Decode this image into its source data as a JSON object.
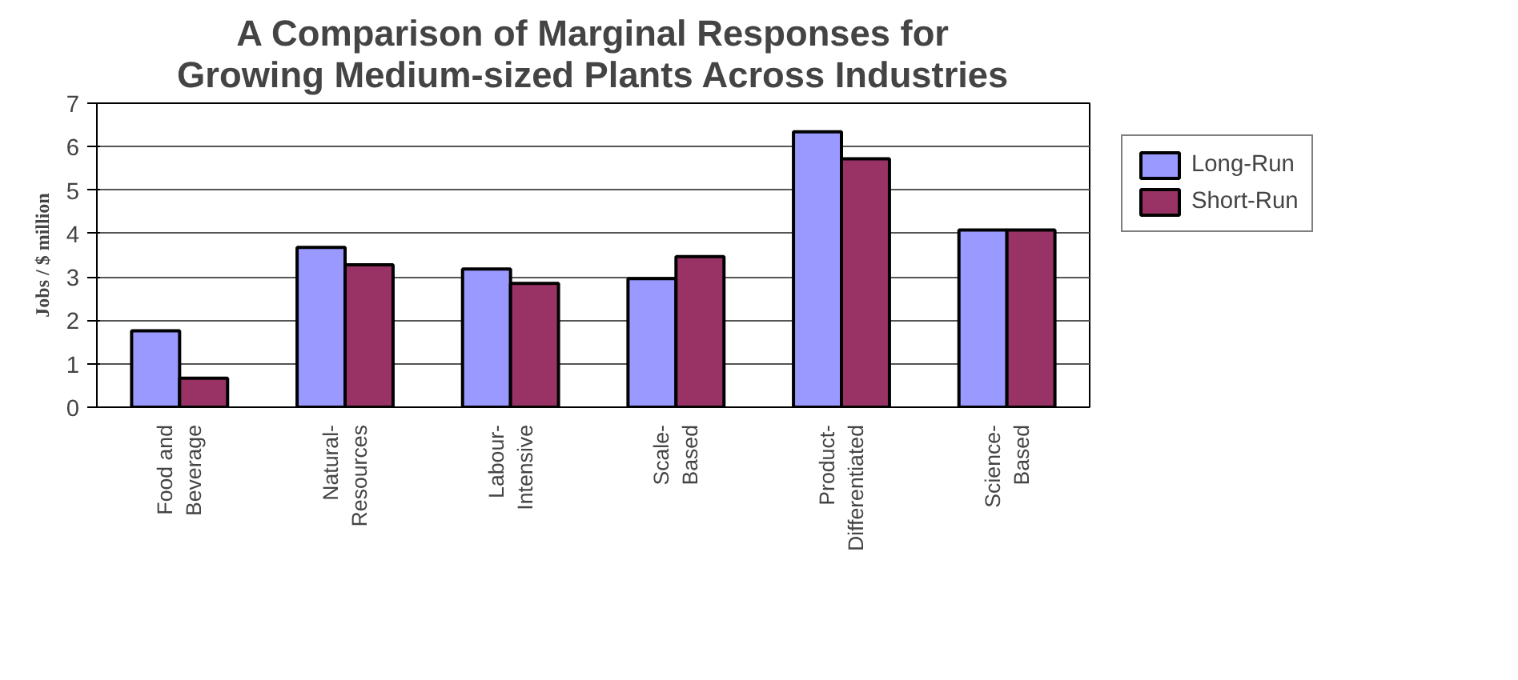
{
  "chart_data": {
    "type": "bar",
    "title": "A Comparison of Marginal Responses for\nGrowing Medium-sized Plants Across Industries",
    "ylabel": "Jobs / $ million",
    "categories": [
      "Food and\nBeverage",
      "Natural-\nResources",
      "Labour-\nIntensive",
      "Scale-\nBased",
      "Product-\nDifferentiated",
      "Science-\nBased"
    ],
    "series": [
      {
        "name": "Long-Run",
        "color": "#9999ff",
        "values": [
          1.76,
          3.68,
          3.18,
          2.96,
          6.34,
          4.08
        ]
      },
      {
        "name": "Short-Run",
        "color": "#993366",
        "values": [
          0.67,
          3.28,
          2.85,
          3.47,
          5.72,
          4.08
        ]
      }
    ],
    "ylim": [
      0,
      7
    ],
    "yticks": [
      0,
      1,
      2,
      3,
      4,
      5,
      6,
      7
    ],
    "grid": "y",
    "legend": "right"
  }
}
